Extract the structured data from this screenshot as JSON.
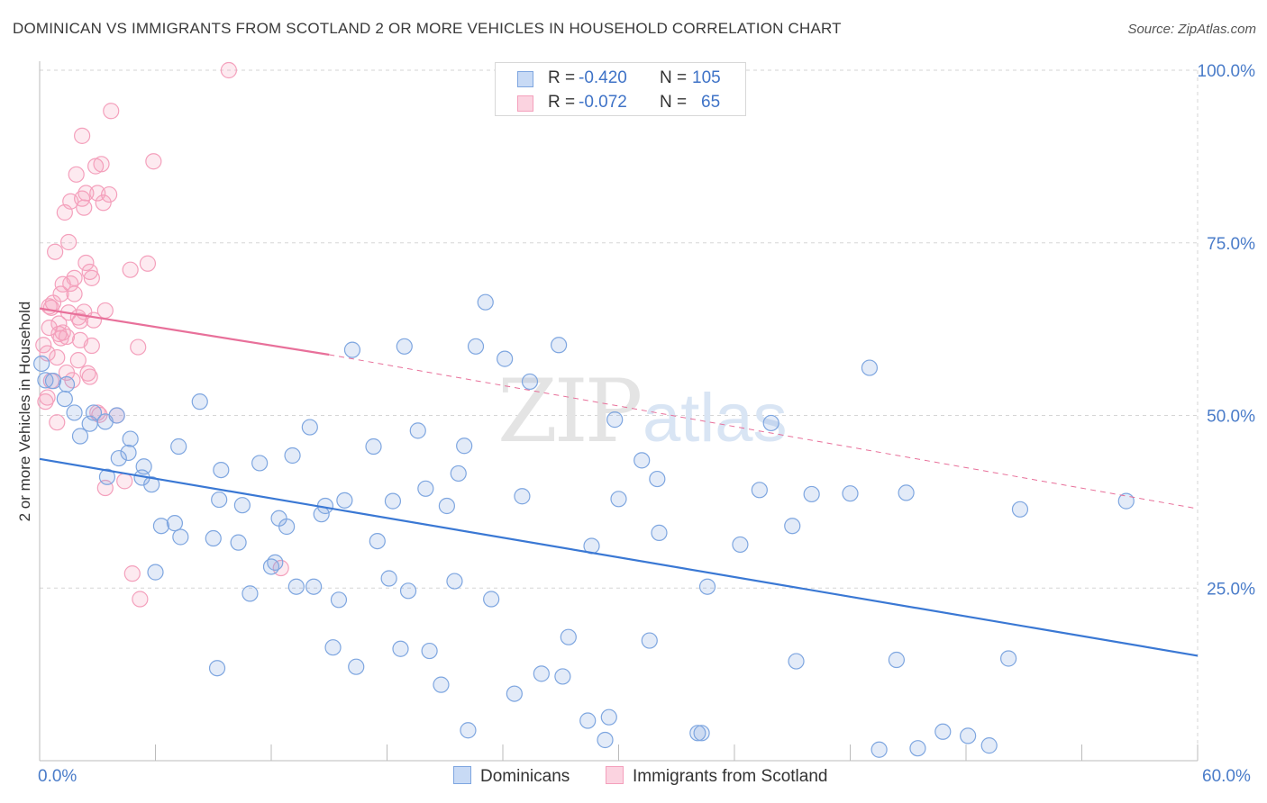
{
  "header": {
    "title": "DOMINICAN VS IMMIGRANTS FROM SCOTLAND 2 OR MORE VEHICLES IN HOUSEHOLD CORRELATION CHART",
    "source": "Source: ZipAtlas.com"
  },
  "watermark": {
    "zip": "ZIP",
    "atlas": "atlas"
  },
  "legend": {
    "rows": [
      {
        "r_label": "R =",
        "r_value": "-0.420",
        "n_label": "N =",
        "n_value": "105",
        "color": "#7ea6e0"
      },
      {
        "r_label": "R =",
        "r_value": "-0.072",
        "n_label": "N =",
        "n_value": "65",
        "color": "#f4a0bc"
      }
    ]
  },
  "chart_data": {
    "type": "scatter",
    "title": "DOMINICAN VS IMMIGRANTS FROM SCOTLAND 2 OR MORE VEHICLES IN HOUSEHOLD CORRELATION CHART",
    "xlabel": "",
    "ylabel": "2 or more Vehicles in Household",
    "xlim": [
      0,
      60
    ],
    "ylim": [
      0,
      100
    ],
    "x_tick_labels": [
      "0.0%",
      "60.0%"
    ],
    "y_tick_labels": [
      "25.0%",
      "50.0%",
      "75.0%",
      "100.0%"
    ],
    "y_ticks": [
      25,
      50,
      75,
      100
    ],
    "legend_position": "bottom-center",
    "series": [
      {
        "name": "Dominicans",
        "color": "#7ea6e0",
        "line_color": "#3a78d4",
        "trend": {
          "x": [
            0,
            60
          ],
          "y": [
            43.7,
            15.2
          ]
        },
        "points": [
          [
            0.1,
            57.5
          ],
          [
            0.3,
            55.1
          ],
          [
            0.7,
            55.0
          ],
          [
            1.3,
            52.4
          ],
          [
            1.4,
            54.5
          ],
          [
            1.8,
            50.4
          ],
          [
            2.1,
            47.0
          ],
          [
            2.6,
            48.8
          ],
          [
            2.8,
            50.4
          ],
          [
            3.4,
            49.1
          ],
          [
            4.0,
            50.0
          ],
          [
            3.5,
            41.1
          ],
          [
            4.7,
            46.6
          ],
          [
            4.6,
            44.6
          ],
          [
            4.1,
            43.8
          ],
          [
            5.4,
            42.6
          ],
          [
            5.3,
            41.0
          ],
          [
            5.8,
            40.0
          ],
          [
            6.3,
            34.0
          ],
          [
            7.0,
            34.4
          ],
          [
            6.0,
            27.3
          ],
          [
            7.3,
            32.4
          ],
          [
            7.2,
            45.5
          ],
          [
            8.3,
            52.0
          ],
          [
            9.0,
            32.2
          ],
          [
            9.4,
            42.1
          ],
          [
            9.2,
            13.4
          ],
          [
            9.3,
            37.8
          ],
          [
            10.3,
            31.6
          ],
          [
            10.5,
            37.0
          ],
          [
            10.9,
            24.2
          ],
          [
            11.4,
            43.1
          ],
          [
            12.2,
            28.7
          ],
          [
            12.0,
            28.1
          ],
          [
            12.4,
            35.1
          ],
          [
            12.8,
            33.9
          ],
          [
            13.1,
            44.2
          ],
          [
            13.3,
            25.2
          ],
          [
            14.2,
            25.2
          ],
          [
            14.0,
            48.3
          ],
          [
            14.6,
            35.7
          ],
          [
            14.8,
            36.9
          ],
          [
            15.2,
            16.4
          ],
          [
            15.5,
            23.3
          ],
          [
            15.8,
            37.7
          ],
          [
            16.2,
            59.5
          ],
          [
            16.4,
            13.6
          ],
          [
            17.3,
            45.5
          ],
          [
            17.5,
            31.8
          ],
          [
            18.1,
            26.4
          ],
          [
            18.3,
            37.6
          ],
          [
            18.7,
            16.2
          ],
          [
            18.9,
            60.0
          ],
          [
            19.1,
            24.6
          ],
          [
            19.6,
            47.8
          ],
          [
            20.0,
            39.4
          ],
          [
            20.2,
            15.9
          ],
          [
            20.8,
            11.0
          ],
          [
            21.1,
            36.9
          ],
          [
            21.5,
            26.0
          ],
          [
            21.7,
            41.6
          ],
          [
            22.0,
            45.6
          ],
          [
            22.2,
            4.4
          ],
          [
            22.6,
            60.0
          ],
          [
            23.1,
            66.4
          ],
          [
            23.4,
            23.4
          ],
          [
            24.1,
            58.2
          ],
          [
            24.6,
            9.7
          ],
          [
            25.0,
            38.3
          ],
          [
            25.4,
            54.9
          ],
          [
            26.0,
            12.6
          ],
          [
            26.9,
            60.2
          ],
          [
            27.1,
            12.2
          ],
          [
            27.4,
            17.9
          ],
          [
            28.4,
            5.8
          ],
          [
            28.6,
            31.1
          ],
          [
            29.3,
            3.0
          ],
          [
            29.5,
            6.3
          ],
          [
            29.8,
            49.4
          ],
          [
            30.0,
            37.9
          ],
          [
            31.2,
            43.5
          ],
          [
            31.6,
            17.4
          ],
          [
            32.0,
            40.8
          ],
          [
            32.1,
            33.0
          ],
          [
            34.1,
            4.0
          ],
          [
            34.3,
            4.0
          ],
          [
            34.6,
            25.2
          ],
          [
            36.3,
            31.3
          ],
          [
            37.3,
            39.2
          ],
          [
            37.9,
            48.9
          ],
          [
            39.0,
            34.0
          ],
          [
            39.2,
            14.4
          ],
          [
            40.0,
            38.6
          ],
          [
            42.0,
            38.7
          ],
          [
            43.0,
            56.9
          ],
          [
            43.5,
            1.6
          ],
          [
            44.4,
            14.6
          ],
          [
            44.9,
            38.8
          ],
          [
            46.8,
            4.2
          ],
          [
            48.1,
            3.6
          ],
          [
            49.2,
            2.2
          ],
          [
            50.2,
            14.8
          ],
          [
            50.8,
            36.4
          ],
          [
            56.3,
            37.6
          ],
          [
            45.5,
            1.8
          ]
        ]
      },
      {
        "name": "Immigrants from Scotland",
        "color": "#f4a0bc",
        "line_color": "#e8709a",
        "trend": {
          "x": [
            0,
            15
          ],
          "y": [
            65.5,
            58.8
          ]
        },
        "trend_dashed": {
          "x": [
            15,
            60
          ],
          "y": [
            58.8,
            36.5
          ]
        },
        "points": [
          [
            0.2,
            60.2
          ],
          [
            0.3,
            52.0
          ],
          [
            0.4,
            59.0
          ],
          [
            0.4,
            52.6
          ],
          [
            0.5,
            62.7
          ],
          [
            0.6,
            65.6
          ],
          [
            0.7,
            66.3
          ],
          [
            0.8,
            73.7
          ],
          [
            0.9,
            49.0
          ],
          [
            1.0,
            61.8
          ],
          [
            1.1,
            61.2
          ],
          [
            1.1,
            67.6
          ],
          [
            1.2,
            69.0
          ],
          [
            1.3,
            79.4
          ],
          [
            1.4,
            61.4
          ],
          [
            1.5,
            75.1
          ],
          [
            1.6,
            69.1
          ],
          [
            1.6,
            81.0
          ],
          [
            1.7,
            55.1
          ],
          [
            1.8,
            67.6
          ],
          [
            1.9,
            84.9
          ],
          [
            2.0,
            64.2
          ],
          [
            2.1,
            60.9
          ],
          [
            2.1,
            63.7
          ],
          [
            2.2,
            81.4
          ],
          [
            2.2,
            90.5
          ],
          [
            2.3,
            80.1
          ],
          [
            2.3,
            65.0
          ],
          [
            2.4,
            72.1
          ],
          [
            2.4,
            82.2
          ],
          [
            2.5,
            56.1
          ],
          [
            2.6,
            55.6
          ],
          [
            2.6,
            70.8
          ],
          [
            2.7,
            69.9
          ],
          [
            2.7,
            60.1
          ],
          [
            2.8,
            63.8
          ],
          [
            2.9,
            86.1
          ],
          [
            3.0,
            82.2
          ],
          [
            3.0,
            50.4
          ],
          [
            3.1,
            50.1
          ],
          [
            3.2,
            86.4
          ],
          [
            3.3,
            80.8
          ],
          [
            3.4,
            65.2
          ],
          [
            3.4,
            39.5
          ],
          [
            3.6,
            82.0
          ],
          [
            3.7,
            94.1
          ],
          [
            4.0,
            50.0
          ],
          [
            4.4,
            40.5
          ],
          [
            4.7,
            71.1
          ],
          [
            4.8,
            27.1
          ],
          [
            5.1,
            59.9
          ],
          [
            5.2,
            23.4
          ],
          [
            5.6,
            72.0
          ],
          [
            5.9,
            86.8
          ],
          [
            9.8,
            100.0
          ],
          [
            12.5,
            27.9
          ],
          [
            0.5,
            65.8
          ],
          [
            1.0,
            63.3
          ],
          [
            1.8,
            69.9
          ],
          [
            0.9,
            58.4
          ],
          [
            1.4,
            56.2
          ],
          [
            2.0,
            58.0
          ],
          [
            0.6,
            55.0
          ],
          [
            1.5,
            64.9
          ],
          [
            1.2,
            62.0
          ]
        ]
      }
    ]
  }
}
